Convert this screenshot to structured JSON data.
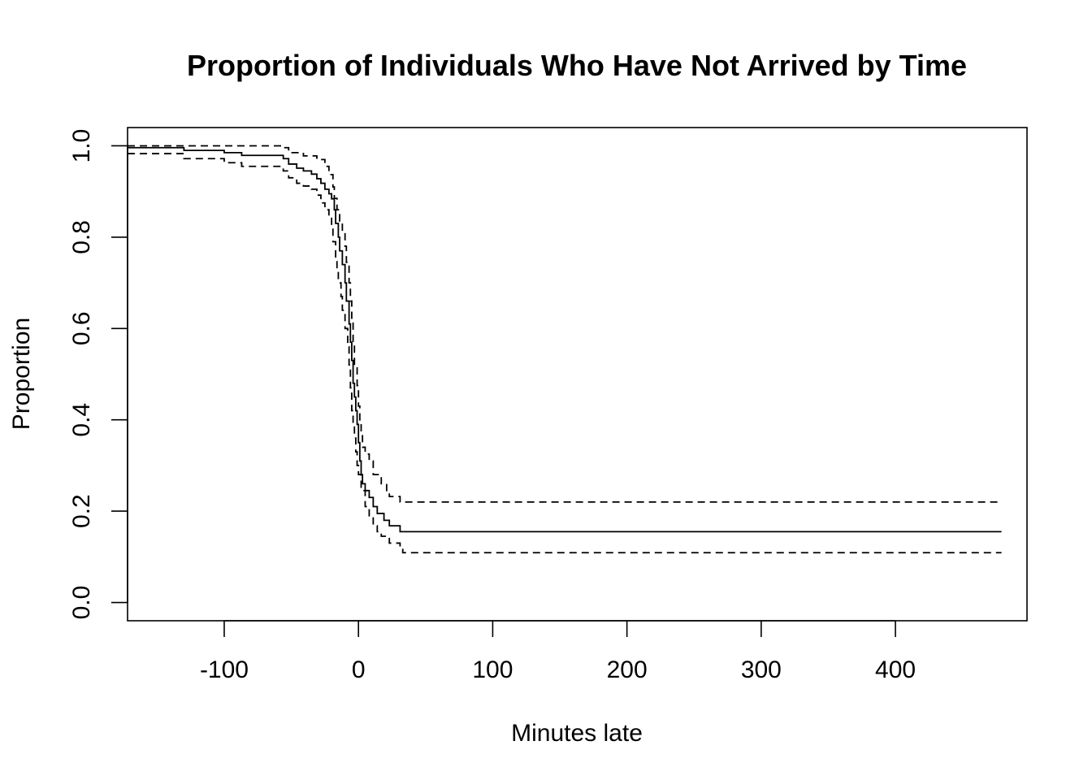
{
  "chart_data": {
    "type": "line",
    "title": "Proportion of Individuals Who Have Not Arrived by Time",
    "xlabel": "Minutes late",
    "ylabel": "Proportion",
    "xlim": [
      -172,
      498
    ],
    "ylim": [
      -0.04,
      1.04
    ],
    "x_ticks": [
      -100,
      0,
      100,
      200,
      300,
      400
    ],
    "x_tick_labels": [
      "-100",
      "0",
      "100",
      "200",
      "300",
      "400"
    ],
    "y_ticks": [
      0.0,
      0.2,
      0.4,
      0.6,
      0.8,
      1.0
    ],
    "y_tick_labels": [
      "0.0",
      "0.2",
      "0.4",
      "0.6",
      "0.8",
      "1.0"
    ],
    "grid": false,
    "legend": "none",
    "step": true,
    "series": [
      {
        "style": "solid",
        "points": [
          [
            -172,
            0.996
          ],
          [
            -130,
            0.99
          ],
          [
            -100,
            0.985
          ],
          [
            -87,
            0.979
          ],
          [
            -56,
            0.972
          ],
          [
            -52,
            0.96
          ],
          [
            -46,
            0.951
          ],
          [
            -41,
            0.945
          ],
          [
            -35,
            0.938
          ],
          [
            -31,
            0.928
          ],
          [
            -28,
            0.918
          ],
          [
            -25,
            0.905
          ],
          [
            -22,
            0.895
          ],
          [
            -20,
            0.884
          ],
          [
            -18,
            0.86
          ],
          [
            -17,
            0.83
          ],
          [
            -15,
            0.8
          ],
          [
            -14,
            0.77
          ],
          [
            -12,
            0.74
          ],
          [
            -10,
            0.7
          ],
          [
            -9,
            0.66
          ],
          [
            -7,
            0.61
          ],
          [
            -6,
            0.57
          ],
          [
            -5,
            0.53
          ],
          [
            -4,
            0.48
          ],
          [
            -3,
            0.45
          ],
          [
            -2,
            0.42
          ],
          [
            -1,
            0.39
          ],
          [
            0,
            0.35
          ],
          [
            1,
            0.31
          ],
          [
            2,
            0.28
          ],
          [
            3,
            0.26
          ],
          [
            5,
            0.245
          ],
          [
            8,
            0.23
          ],
          [
            11,
            0.21
          ],
          [
            14,
            0.195
          ],
          [
            19,
            0.18
          ],
          [
            23,
            0.168
          ],
          [
            31,
            0.155
          ],
          [
            479,
            0.155
          ]
        ]
      },
      {
        "style": "dashed",
        "points": [
          [
            -172,
            1.0
          ],
          [
            -56,
            0.996
          ],
          [
            -52,
            0.985
          ],
          [
            -41,
            0.978
          ],
          [
            -31,
            0.97
          ],
          [
            -25,
            0.955
          ],
          [
            -22,
            0.937
          ],
          [
            -19,
            0.91
          ],
          [
            -18,
            0.885
          ],
          [
            -16,
            0.86
          ],
          [
            -14,
            0.835
          ],
          [
            -12,
            0.81
          ],
          [
            -10,
            0.78
          ],
          [
            -9,
            0.745
          ],
          [
            -7,
            0.7
          ],
          [
            -6,
            0.66
          ],
          [
            -5,
            0.62
          ],
          [
            -4,
            0.57
          ],
          [
            -3,
            0.52
          ],
          [
            -1,
            0.475
          ],
          [
            0,
            0.43
          ],
          [
            1,
            0.4
          ],
          [
            2,
            0.37
          ],
          [
            3,
            0.34
          ],
          [
            5,
            0.325
          ],
          [
            8,
            0.31
          ],
          [
            11,
            0.28
          ],
          [
            17,
            0.26
          ],
          [
            21,
            0.24
          ],
          [
            23,
            0.232
          ],
          [
            31,
            0.22
          ],
          [
            479,
            0.22
          ]
        ]
      },
      {
        "style": "dashed",
        "points": [
          [
            -172,
            0.983
          ],
          [
            -130,
            0.972
          ],
          [
            -100,
            0.963
          ],
          [
            -87,
            0.955
          ],
          [
            -56,
            0.945
          ],
          [
            -52,
            0.93
          ],
          [
            -46,
            0.918
          ],
          [
            -41,
            0.912
          ],
          [
            -35,
            0.905
          ],
          [
            -31,
            0.892
          ],
          [
            -28,
            0.875
          ],
          [
            -25,
            0.86
          ],
          [
            -22,
            0.845
          ],
          [
            -20,
            0.82
          ],
          [
            -19,
            0.79
          ],
          [
            -17,
            0.755
          ],
          [
            -16,
            0.73
          ],
          [
            -15,
            0.7
          ],
          [
            -13,
            0.67
          ],
          [
            -12,
            0.64
          ],
          [
            -10,
            0.6
          ],
          [
            -8,
            0.56
          ],
          [
            -7,
            0.52
          ],
          [
            -6,
            0.47
          ],
          [
            -5,
            0.42
          ],
          [
            -4,
            0.39
          ],
          [
            -3,
            0.36
          ],
          [
            -2,
            0.33
          ],
          [
            -1,
            0.3
          ],
          [
            0,
            0.28
          ],
          [
            2,
            0.245
          ],
          [
            5,
            0.21
          ],
          [
            8,
            0.19
          ],
          [
            11,
            0.168
          ],
          [
            14,
            0.155
          ],
          [
            17,
            0.145
          ],
          [
            23,
            0.13
          ],
          [
            31,
            0.118
          ],
          [
            33,
            0.109
          ],
          [
            479,
            0.109
          ]
        ]
      }
    ]
  }
}
